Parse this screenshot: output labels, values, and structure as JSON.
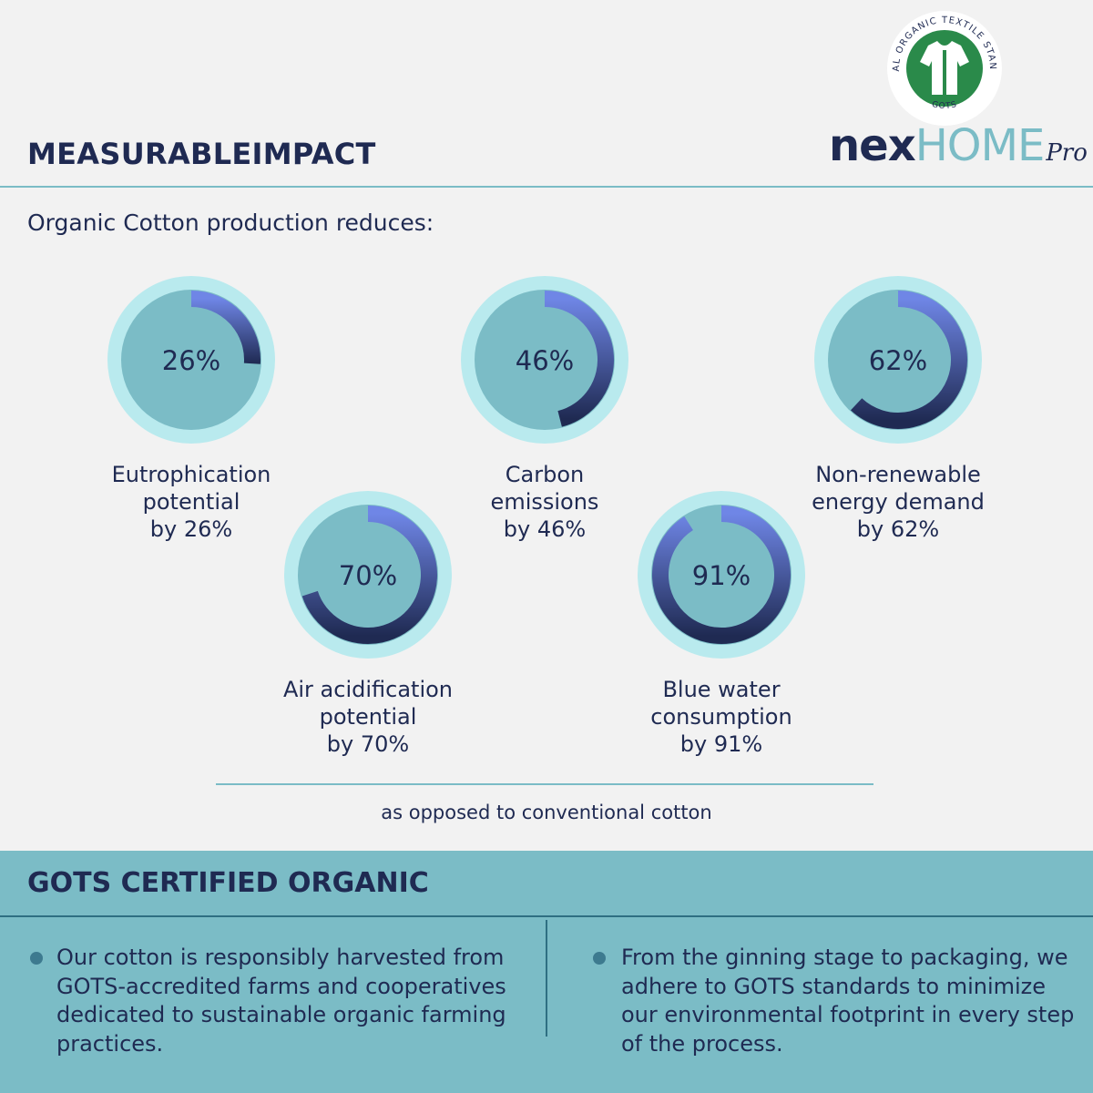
{
  "brand": {
    "seal_text_top": "GLOBAL ORGANIC TEXTILE STANDARD",
    "seal_text_bottom": "GOTS",
    "name_part1": "nex",
    "name_part2": "HOME",
    "name_part3": "Pro"
  },
  "header": {
    "title": "MEASURABLEIMPACT",
    "subtitle": "Organic Cotton production reduces:"
  },
  "colors": {
    "background": "#f2f2f2",
    "teal": "#7bbcc6",
    "ring_glow": "#b9eaee",
    "arc_start": "#6f86e6",
    "arc_end": "#1f2a52",
    "navy": "#1f2a52"
  },
  "chart_data": {
    "type": "pie",
    "unit": "%",
    "items": [
      {
        "value": 26,
        "display": "26%",
        "label": [
          "Eutrophication",
          "potential",
          "by 26%"
        ]
      },
      {
        "value": 46,
        "display": "46%",
        "label": [
          "Carbon",
          "emissions",
          "by 46%"
        ]
      },
      {
        "value": 62,
        "display": "62%",
        "label": [
          "Non-renewable",
          "energy demand",
          "by 62%"
        ]
      },
      {
        "value": 70,
        "display": "70%",
        "label": [
          "Air acidification",
          "potential",
          "by 70%"
        ]
      },
      {
        "value": 91,
        "display": "91%",
        "label": [
          "Blue water",
          "consumption",
          "by 91%"
        ]
      }
    ]
  },
  "footnote": "as opposed to conventional cotton",
  "gots": {
    "title": "GOTS CERTIFIED ORGANIC",
    "bullets": [
      "Our cotton is responsibly harvested from GOTS-accredited farms and cooperatives dedicated to sustainable organic farming practices.",
      "From the ginning stage to packaging, we adhere to GOTS standards to minimize our environmental footprint in every step of the process."
    ]
  }
}
